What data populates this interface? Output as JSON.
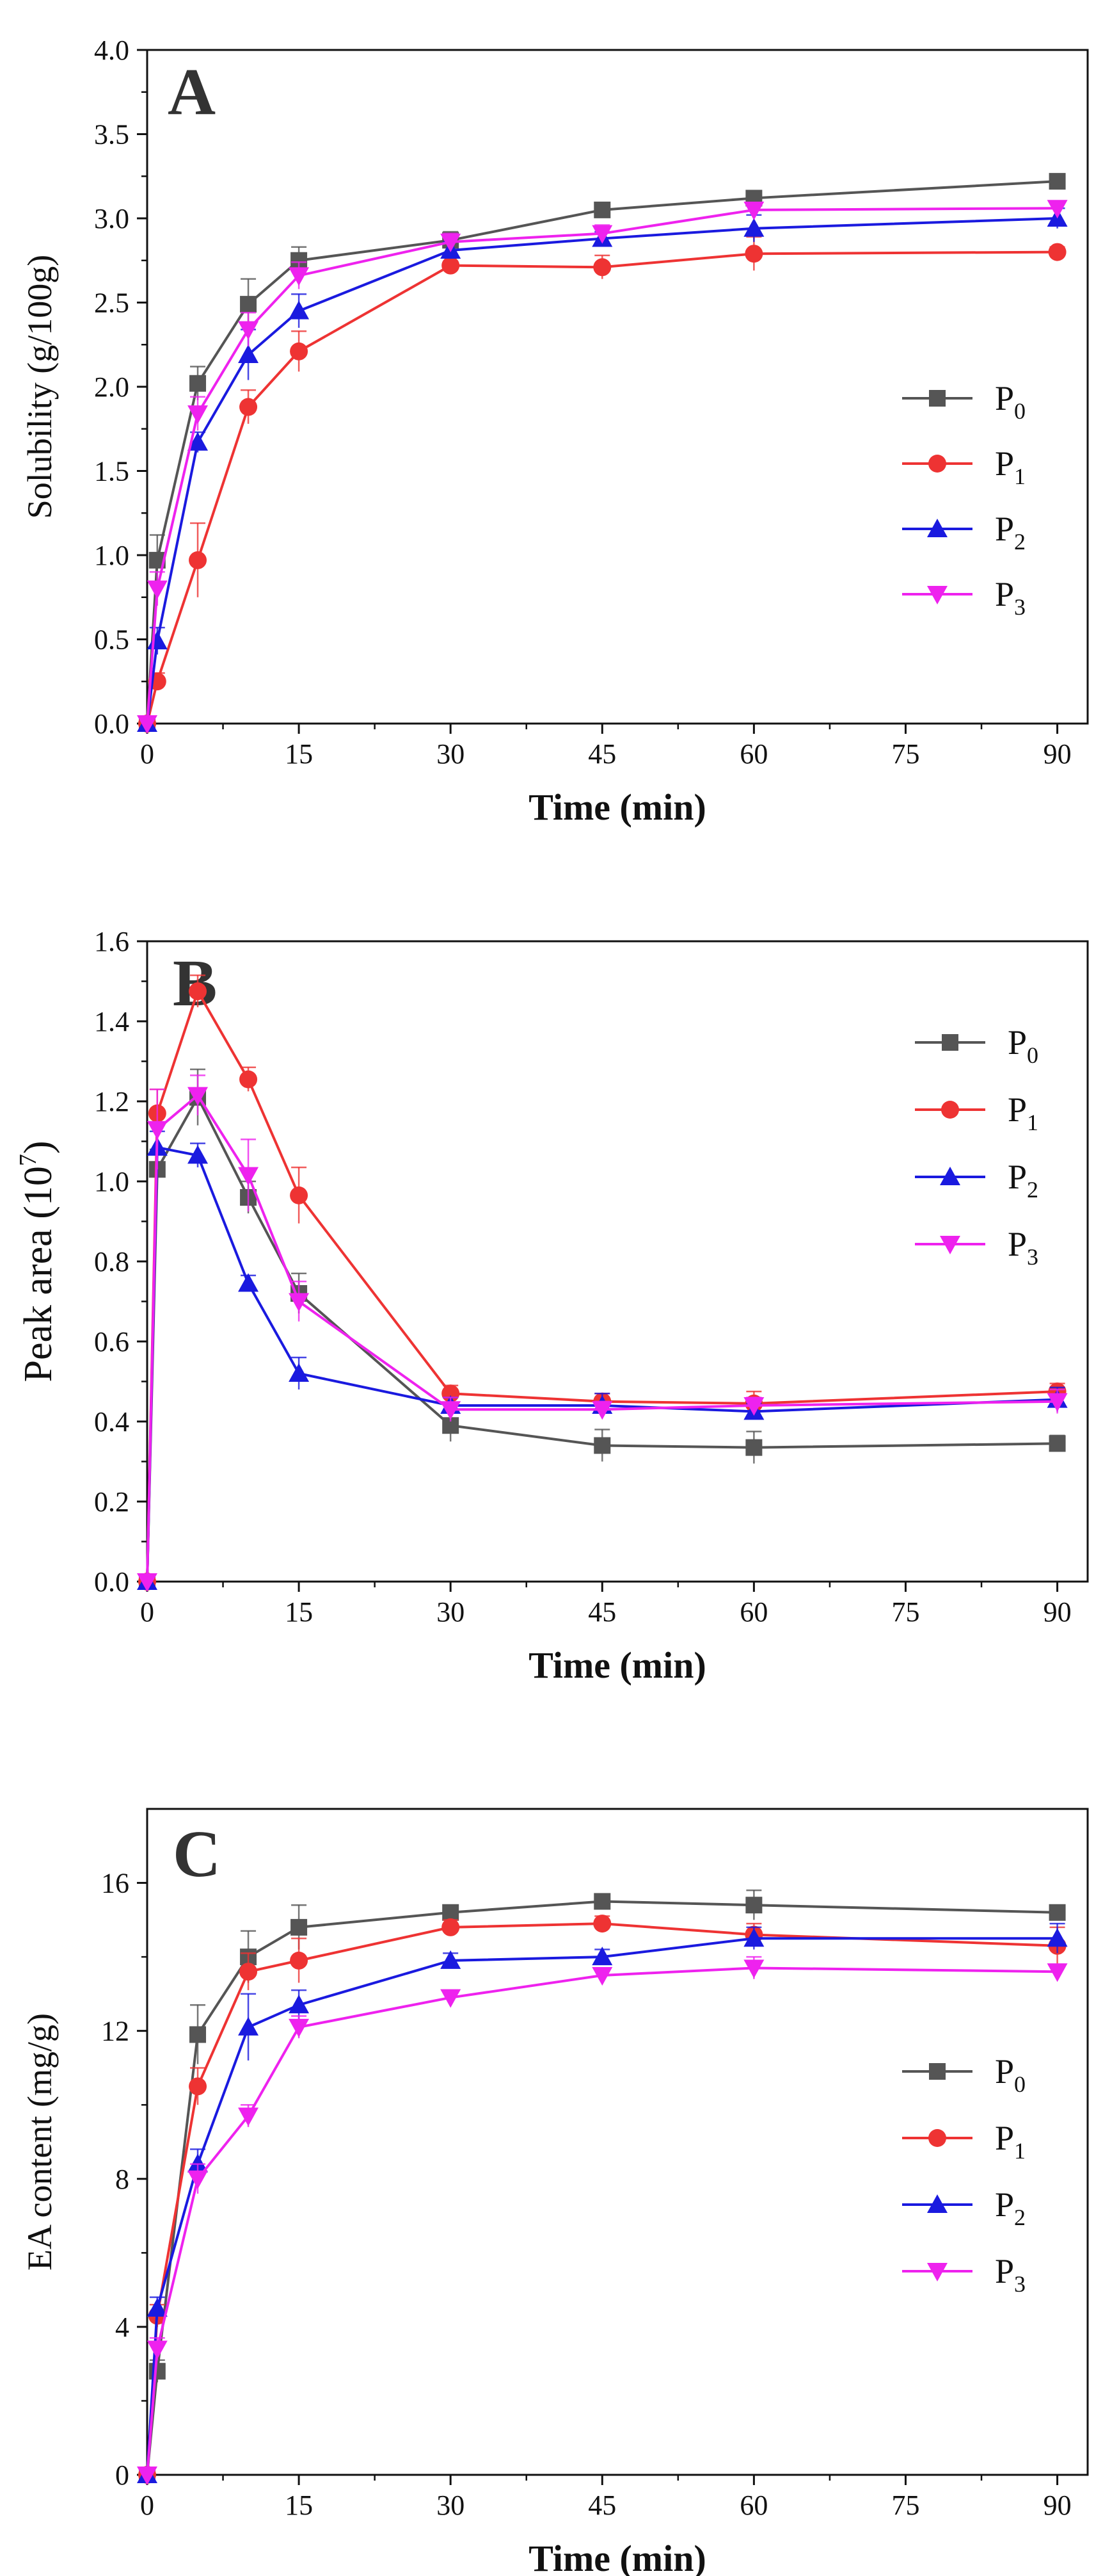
{
  "chart_data": [
    {
      "type": "line",
      "panel_label": "A",
      "xlabel": "Time (min)",
      "ylabel": "Solubility (g/100g)",
      "ylabel_sup": "",
      "xlim": [
        0,
        93
      ],
      "ylim": [
        0,
        4.0
      ],
      "xticks": [
        0,
        15,
        30,
        45,
        60,
        75,
        90
      ],
      "yticks": [
        0.0,
        0.5,
        1.0,
        1.5,
        2.0,
        2.5,
        3.0,
        3.5,
        4.0
      ],
      "ytick_decimals": 1,
      "legend": "right",
      "series": [
        {
          "name": "P",
          "sub": "0",
          "color": "#555555",
          "marker": "square",
          "x": [
            0,
            1,
            5,
            10,
            15,
            30,
            45,
            60,
            90
          ],
          "y": [
            0,
            0.97,
            2.02,
            2.49,
            2.75,
            2.87,
            3.05,
            3.12,
            3.22
          ],
          "err": [
            0,
            0.15,
            0.1,
            0.15,
            0.08,
            0.05,
            0.03,
            0.03,
            0.03
          ]
        },
        {
          "name": "P",
          "sub": "1",
          "color": "#ee3333",
          "marker": "circle",
          "x": [
            0,
            1,
            5,
            10,
            15,
            30,
            45,
            60,
            90
          ],
          "y": [
            0,
            0.25,
            0.97,
            1.88,
            2.21,
            2.72,
            2.71,
            2.79,
            2.8
          ],
          "err": [
            0,
            0.05,
            0.22,
            0.1,
            0.12,
            0.05,
            0.07,
            0.1,
            0.03
          ]
        },
        {
          "name": "P",
          "sub": "2",
          "color": "#1a1adf",
          "marker": "triangle",
          "x": [
            0,
            1,
            5,
            10,
            15,
            30,
            45,
            60,
            90
          ],
          "y": [
            0,
            0.49,
            1.67,
            2.19,
            2.45,
            2.81,
            2.88,
            2.94,
            3.0
          ],
          "err": [
            0,
            0.08,
            0.06,
            0.15,
            0.1,
            0.05,
            0.04,
            0.08,
            0.06
          ]
        },
        {
          "name": "P",
          "sub": "3",
          "color": "#ee22ee",
          "marker": "triangle-down",
          "x": [
            0,
            1,
            5,
            10,
            15,
            30,
            45,
            60,
            90
          ],
          "y": [
            0,
            0.8,
            1.84,
            2.34,
            2.66,
            2.86,
            2.91,
            3.05,
            3.06
          ],
          "err": [
            0,
            0.1,
            0.1,
            0.1,
            0.08,
            0.05,
            0.05,
            0.04,
            0.04
          ]
        }
      ]
    },
    {
      "type": "line",
      "panel_label": "B",
      "xlabel": "Time (min)",
      "ylabel": "Peak area (10",
      "ylabel_sup": "7",
      "ylabel_tail": ")",
      "xlim": [
        0,
        93
      ],
      "ylim": [
        0,
        1.6
      ],
      "xticks": [
        0,
        15,
        30,
        45,
        60,
        75,
        90
      ],
      "yticks": [
        0.0,
        0.2,
        0.4,
        0.6,
        0.8,
        1.0,
        1.2,
        1.4,
        1.6
      ],
      "ytick_decimals": 1,
      "legend": "top-right",
      "series": [
        {
          "name": "P",
          "sub": "0",
          "color": "#555555",
          "marker": "square",
          "x": [
            0,
            1,
            5,
            10,
            15,
            30,
            45,
            60,
            90
          ],
          "y": [
            0,
            1.03,
            1.21,
            0.96,
            0.72,
            0.39,
            0.34,
            0.335,
            0.345
          ],
          "err": [
            0,
            0.05,
            0.07,
            0.04,
            0.05,
            0.04,
            0.04,
            0.04,
            0.02
          ]
        },
        {
          "name": "P",
          "sub": "1",
          "color": "#ee3333",
          "marker": "circle",
          "x": [
            0,
            1,
            5,
            10,
            15,
            30,
            45,
            60,
            90
          ],
          "y": [
            0,
            1.17,
            1.475,
            1.255,
            0.965,
            0.47,
            0.45,
            0.445,
            0.475
          ],
          "err": [
            0,
            0.06,
            0.04,
            0.03,
            0.07,
            0.02,
            0.02,
            0.03,
            0.02
          ]
        },
        {
          "name": "P",
          "sub": "2",
          "color": "#1a1adf",
          "marker": "triangle",
          "x": [
            0,
            1,
            5,
            10,
            15,
            30,
            45,
            60,
            90
          ],
          "y": [
            0,
            1.085,
            1.065,
            0.745,
            0.52,
            0.44,
            0.44,
            0.425,
            0.455
          ],
          "err": [
            0,
            0.04,
            0.03,
            0.02,
            0.04,
            0.02,
            0.03,
            0.02,
            0.03
          ]
        },
        {
          "name": "P",
          "sub": "3",
          "color": "#ee22ee",
          "marker": "triangle-down",
          "x": [
            0,
            1,
            5,
            10,
            15,
            30,
            45,
            60,
            90
          ],
          "y": [
            0,
            1.13,
            1.215,
            1.015,
            0.7,
            0.43,
            0.43,
            0.44,
            0.45
          ],
          "err": [
            0,
            0.1,
            0.05,
            0.09,
            0.05,
            0.03,
            0.02,
            0.02,
            0.03
          ]
        }
      ]
    },
    {
      "type": "line",
      "panel_label": "C",
      "xlabel": "Time (min)",
      "ylabel": "EA content (mg/g)",
      "ylabel_sup": "",
      "xlim": [
        0,
        93
      ],
      "ylim": [
        0,
        18
      ],
      "xticks": [
        0,
        15,
        30,
        45,
        60,
        75,
        90
      ],
      "yticks": [
        0,
        4,
        8,
        12,
        16
      ],
      "ytick_decimals": 0,
      "legend": "bottom-right",
      "series": [
        {
          "name": "P",
          "sub": "0",
          "color": "#555555",
          "marker": "square",
          "x": [
            0,
            1,
            5,
            10,
            15,
            30,
            45,
            60,
            90
          ],
          "y": [
            0,
            2.8,
            11.9,
            14.0,
            14.8,
            15.2,
            15.5,
            15.4,
            15.2
          ],
          "err": [
            0,
            0.3,
            0.8,
            0.7,
            0.6,
            0.2,
            0.2,
            0.4,
            0.2
          ]
        },
        {
          "name": "P",
          "sub": "1",
          "color": "#ee3333",
          "marker": "circle",
          "x": [
            0,
            1,
            5,
            10,
            15,
            30,
            45,
            60,
            90
          ],
          "y": [
            0,
            4.3,
            10.5,
            13.6,
            13.9,
            14.8,
            14.9,
            14.6,
            14.3
          ],
          "err": [
            0,
            0.3,
            0.5,
            0.5,
            0.6,
            0.2,
            0.2,
            0.3,
            0.5
          ]
        },
        {
          "name": "P",
          "sub": "2",
          "color": "#1a1adf",
          "marker": "triangle",
          "x": [
            0,
            1,
            5,
            10,
            15,
            30,
            45,
            60,
            90
          ],
          "y": [
            0,
            4.5,
            8.4,
            12.1,
            12.7,
            13.9,
            14.0,
            14.5,
            14.5
          ],
          "err": [
            0,
            0.3,
            0.4,
            0.9,
            0.4,
            0.2,
            0.2,
            0.3,
            0.4
          ]
        },
        {
          "name": "P",
          "sub": "3",
          "color": "#ee22ee",
          "marker": "triangle-down",
          "x": [
            0,
            1,
            5,
            10,
            15,
            30,
            45,
            60,
            90
          ],
          "y": [
            0,
            3.4,
            8.0,
            9.7,
            12.1,
            12.9,
            13.5,
            13.7,
            13.6
          ],
          "err": [
            0,
            0.3,
            0.4,
            0.3,
            0.3,
            0.2,
            0.2,
            0.3,
            0.2
          ]
        }
      ]
    }
  ]
}
